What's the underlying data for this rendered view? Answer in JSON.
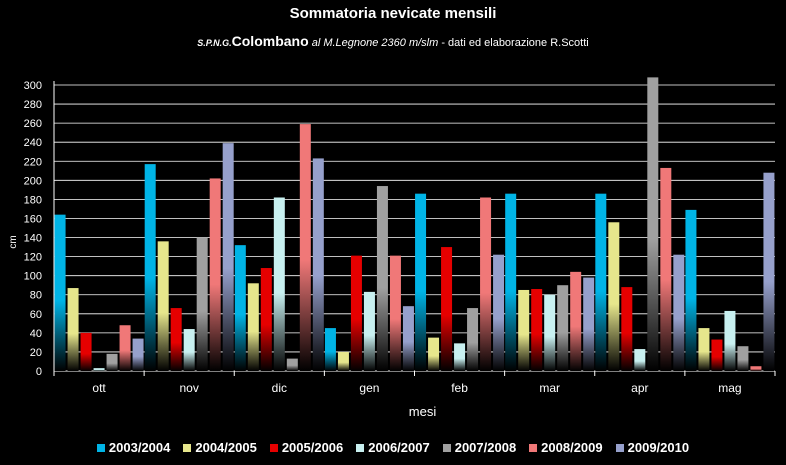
{
  "title": "Sommatoria nevicate mensili",
  "subtitle": {
    "abbr": "S.P.N.G.",
    "name": "Colombano",
    "location": "al M.Legnone 2360 m/slm",
    "credit": " -  dati ed elaborazione R.Scotti"
  },
  "colors": {
    "2003/2004": "#00b4e6",
    "2004/2005": "#e6e68c",
    "2005/2006": "#e60000",
    "2006/2007": "#c8f0f0",
    "2007/2008": "#a0a0a0",
    "2008/2009": "#f07878",
    "2009/2010": "#96a0cc"
  },
  "chart_data": {
    "type": "bar",
    "xlabel": "mesi",
    "ylabel": "cm",
    "ylim": [
      0,
      310
    ],
    "yticks": [
      0,
      20,
      40,
      60,
      80,
      100,
      120,
      140,
      160,
      180,
      200,
      220,
      240,
      260,
      280,
      300
    ],
    "categories": [
      "ott",
      "nov",
      "dic",
      "gen",
      "feb",
      "mar",
      "apr",
      "mag"
    ],
    "legend_position": "bottom",
    "series": [
      {
        "name": "2003/2004",
        "values": [
          164,
          217,
          132,
          45,
          186,
          186,
          186,
          169
        ]
      },
      {
        "name": "2004/2005",
        "values": [
          87,
          136,
          92,
          20,
          35,
          85,
          156,
          45
        ]
      },
      {
        "name": "2005/2006",
        "values": [
          40,
          66,
          108,
          121,
          130,
          86,
          88,
          33
        ]
      },
      {
        "name": "2006/2007",
        "values": [
          3,
          44,
          182,
          83,
          29,
          80,
          23,
          63
        ]
      },
      {
        "name": "2007/2008",
        "values": [
          18,
          140,
          13,
          194,
          66,
          90,
          308,
          26
        ]
      },
      {
        "name": "2008/2009",
        "values": [
          48,
          202,
          259,
          121,
          182,
          104,
          213,
          5
        ]
      },
      {
        "name": "2009/2010",
        "values": [
          34,
          239,
          223,
          68,
          122,
          98,
          122,
          208
        ]
      }
    ]
  }
}
